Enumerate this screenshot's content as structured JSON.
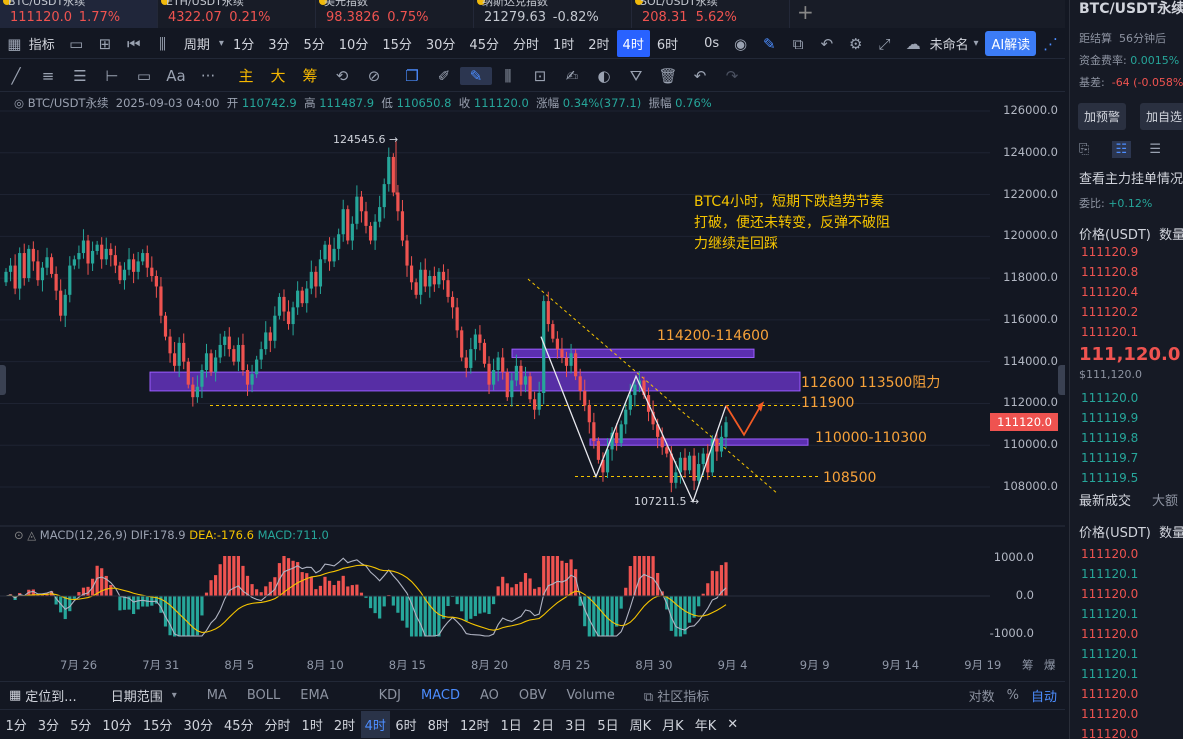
{
  "tickers": [
    {
      "name": "BTC/USDT永续",
      "price": "111120.0",
      "change": "1.77%",
      "color": "#ef5350",
      "active": true
    },
    {
      "name": "ETH/USDT永续",
      "price": "4322.07",
      "change": "0.21%",
      "color": "#ef5350",
      "active": false
    },
    {
      "name": "美元指数",
      "price": "98.3826",
      "change": "0.75%",
      "color": "#ef5350",
      "active": false
    },
    {
      "name": "纳斯达克指数",
      "price": "21279.63",
      "change": "-0.82%",
      "color": "#c4c8d0",
      "active": false
    },
    {
      "name": "SOL/USDT永续",
      "price": "208.31",
      "change": "5.62%",
      "color": "#ef5350",
      "active": false
    }
  ],
  "add_tab": "+",
  "toolbar1": {
    "indicator": "指标",
    "period": "周期",
    "intervals": [
      "1分",
      "3分",
      "5分",
      "10分",
      "15分",
      "30分",
      "45分",
      "分时",
      "1时",
      "2时",
      "4时",
      "6时"
    ],
    "active_interval": "4时",
    "zero_s": "0s",
    "unnamed": "未命名",
    "ai": "AI解读"
  },
  "toolbar2": {
    "text_tool": "Aa",
    "more": "···",
    "main": "主",
    "big": "大",
    "chip": "筹"
  },
  "chart_info": {
    "symbol": "BTC/USDT永续",
    "datetime": "2025-09-03 04:00",
    "open_label": "开",
    "open": "110742.9",
    "high_label": "高",
    "high": "111487.9",
    "low_label": "低",
    "low": "110650.8",
    "close_label": "收",
    "close": "111120.0",
    "change_label": "涨幅",
    "change": "0.34%(377.1)",
    "amp_label": "振幅",
    "amp": "0.76%"
  },
  "annotation": {
    "lines": [
      "BTC4小时，短期下跌趋势节奏",
      "打破，便还未转变，反弹不破阻",
      "力继续走回踩"
    ],
    "color": "#f5c400"
  },
  "levels": {
    "zone_high": "114200-114600",
    "zone_resist": "112600 113500阻力",
    "line_111900": "111900",
    "zone_support": "110000-110300",
    "line_108500": "108500",
    "peak_label": "124545.6",
    "low_label": "107211.5",
    "level_color": "#f7a23a",
    "zone_color": "#7c3aed"
  },
  "price_axis": [
    "126000.0",
    "124000.0",
    "122000.0",
    "120000.0",
    "118000.0",
    "116000.0",
    "114000.0",
    "112000.0",
    "110000.0",
    "108000.0"
  ],
  "current_price_tag": "111120.0",
  "macd": {
    "title": "MACD(12,26,9)",
    "dif": "DIF:178.9",
    "dea": "DEA:-176.6",
    "macd": "MACD:711.0",
    "axis": [
      "1000.0",
      "0.0",
      "-1000.0"
    ]
  },
  "time_axis": [
    "7月 26",
    "7月 31",
    "8月 5",
    "8月 10",
    "8月 15",
    "8月 20",
    "8月 25",
    "8月 30",
    "9月 4",
    "9月 9",
    "9月 14",
    "9月 19"
  ],
  "time_axis_right": [
    "筹",
    "爆"
  ],
  "bottom1": {
    "locate": "定位到...",
    "range": "日期范围",
    "main_ind": [
      "MA",
      "BOLL",
      "EMA"
    ],
    "sub_ind": [
      "KDJ",
      "MACD",
      "AO",
      "OBV",
      "Volume"
    ],
    "community": "社区指标",
    "log": "对数",
    "percent": "%",
    "auto": "自动"
  },
  "bottom2": {
    "intervals": [
      "1分",
      "3分",
      "5分",
      "10分",
      "15分",
      "30分",
      "45分",
      "分时",
      "1时",
      "2时",
      "4时",
      "6时",
      "8时",
      "12时",
      "1日",
      "2日",
      "3日",
      "5日",
      "周K",
      "月K",
      "年K"
    ],
    "active": "4时",
    "close": "✕"
  },
  "right_panel": {
    "title": "BTC/USDT永续",
    "settle_label": "距结算",
    "settle": "56分钟后",
    "funding_label": "资金费率:",
    "funding": "0.0015%",
    "basis_label": "基差:",
    "basis": "-64 (-0.058%)",
    "alert_btn": "加预警",
    "fav_btn": "加自选",
    "orderbook_title": "查看主力挂单情况",
    "ratio_label": "委比:",
    "ratio": "+0.12%",
    "price_header": "价格(USDT)",
    "qty_header": "数量",
    "asks": [
      "111120.9",
      "111120.8",
      "111120.4",
      "111120.2",
      "111120.1"
    ],
    "last": "111,120.0",
    "last_usd": "$111,120.0",
    "bids": [
      "111120.0",
      "111119.9",
      "111119.8",
      "111119.7",
      "111119.5"
    ],
    "trades_tab": "最新成交",
    "big_tab": "大额",
    "trades_header_price": "价格(USDT)",
    "trades_header_qty": "数量",
    "trades": [
      {
        "p": "111120.0",
        "c": "red"
      },
      {
        "p": "111120.1",
        "c": "grn"
      },
      {
        "p": "111120.0",
        "c": "red"
      },
      {
        "p": "111120.1",
        "c": "grn"
      },
      {
        "p": "111120.0",
        "c": "red"
      },
      {
        "p": "111120.1",
        "c": "grn"
      },
      {
        "p": "111120.1",
        "c": "grn"
      },
      {
        "p": "111120.0",
        "c": "red"
      },
      {
        "p": "111120.0",
        "c": "red"
      },
      {
        "p": "111120.0",
        "c": "red"
      }
    ]
  }
}
